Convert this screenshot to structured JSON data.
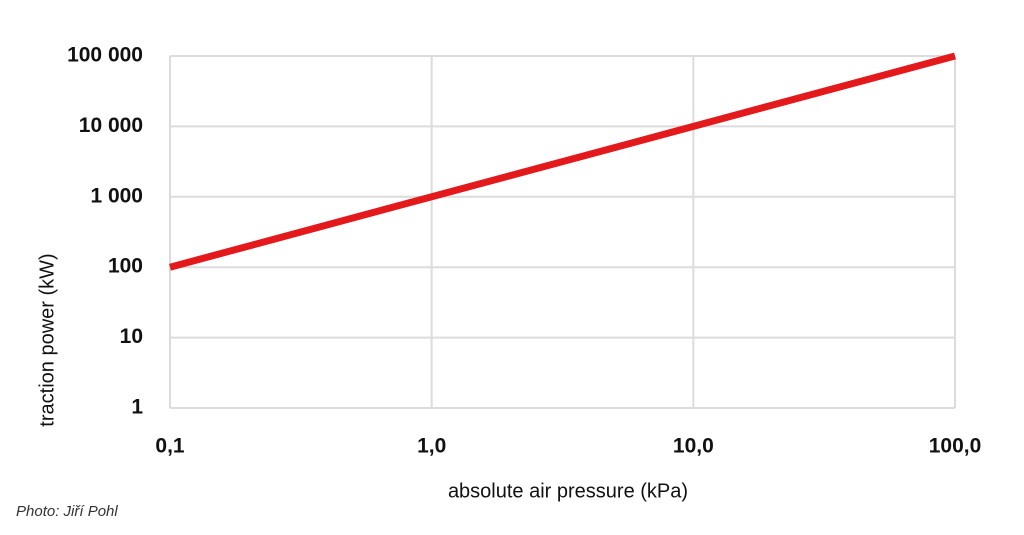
{
  "chart_data": {
    "type": "line",
    "y_label": "traction power (kW)",
    "x_label": "absolute air pressure (kPa)",
    "credit": "Photo: Jiří Pohl",
    "x": [
      0.1,
      100
    ],
    "series": [
      {
        "name": "traction power",
        "color": "#e3191c",
        "values": [
          100,
          100000
        ]
      }
    ],
    "xlog": true,
    "ylog": true,
    "grid": true,
    "xlim": [
      0.1,
      100
    ],
    "xticks": [
      {
        "value": 0.1,
        "label": "0,1"
      },
      {
        "value": 1,
        "label": "1,0"
      },
      {
        "value": 10,
        "label": "10,0"
      },
      {
        "value": 100,
        "label": "100,0"
      }
    ],
    "ylim": [
      1,
      100000
    ],
    "yticks": [
      1,
      10,
      100,
      {
        "value": 1000,
        "label": "1 000"
      },
      {
        "value": 10000,
        "label": "10 000"
      },
      {
        "value": 100000,
        "label": "100 000"
      }
    ]
  }
}
